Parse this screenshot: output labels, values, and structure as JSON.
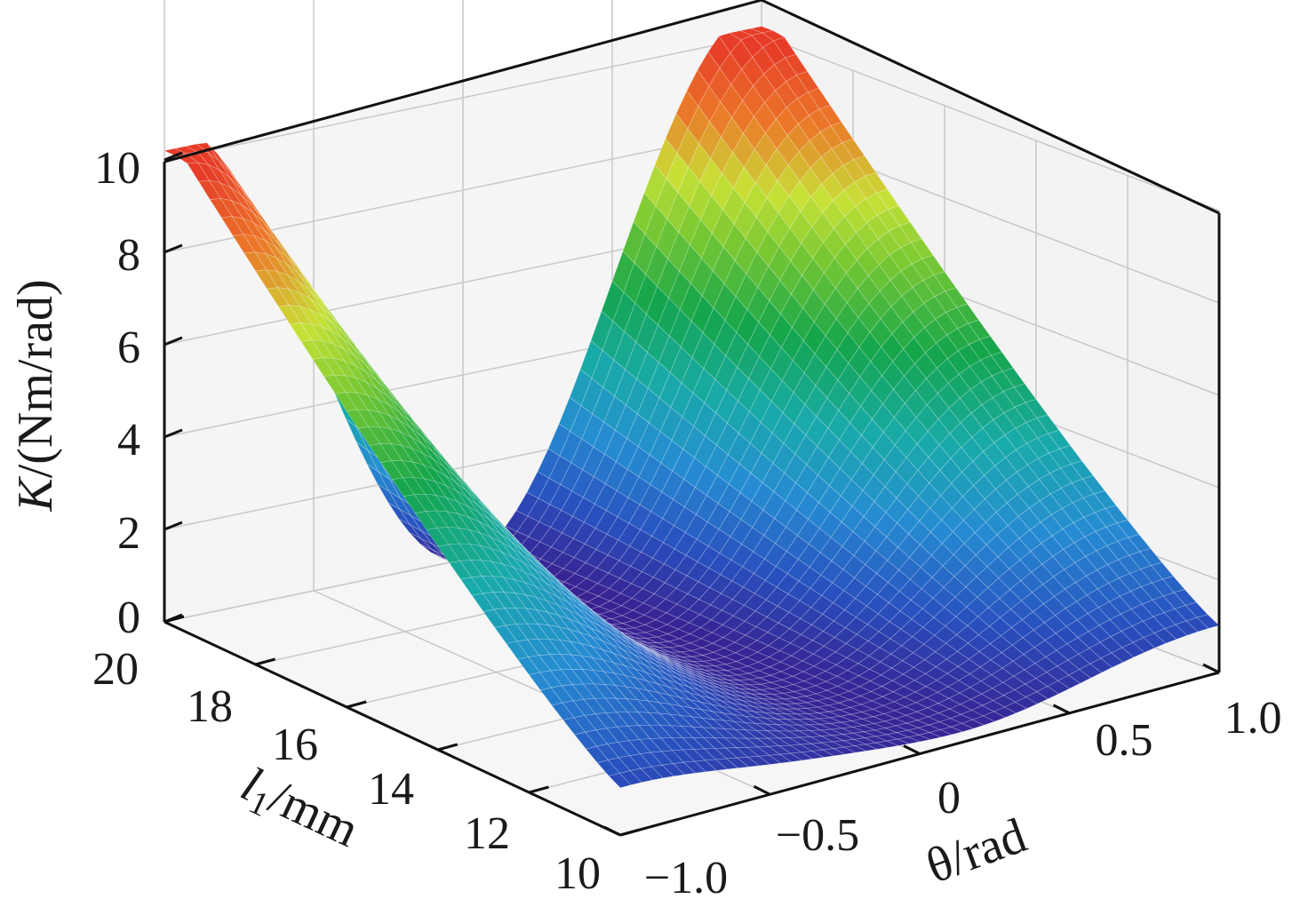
{
  "chart_data": {
    "type": "surface",
    "zlabel_italic": "K",
    "zlabel_rest": "/(Nm/rad)",
    "ylabel_italic": "l",
    "ylabel_sub": "1",
    "ylabel_rest": "/mm",
    "xlabel": "θ/rad",
    "x_ticks": [
      "−1.0",
      "−0.5",
      "0",
      "0.5",
      "1.0"
    ],
    "y_ticks": [
      "10",
      "12",
      "14",
      "16",
      "18",
      "20"
    ],
    "z_ticks": [
      "0",
      "2",
      "4",
      "6",
      "8",
      "10"
    ],
    "x_range": [
      -1.0,
      1.0
    ],
    "y_range": [
      10,
      20
    ],
    "z_range": [
      0,
      10
    ],
    "grid": true,
    "colormap": [
      "#3b1d8c",
      "#2a6fd1",
      "#1aa7b0",
      "#17a542",
      "#c8e23c",
      "#e8502a"
    ],
    "surface_model": "K = (1 + 7.5 * ((l1 - 10) / 10) ^ 1.3) * (sin(pi * theta / 2))^2 approx; two ridges at theta = ±1, valley at theta = 0"
  }
}
